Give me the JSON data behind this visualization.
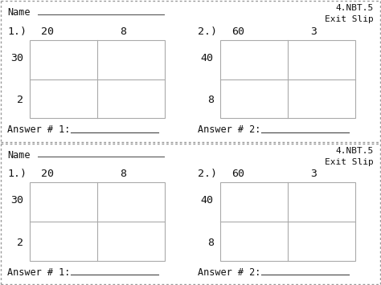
{
  "bg_color": "#ffffff",
  "border_color": "#444444",
  "dot_color": "#999999",
  "text_color": "#111111",
  "grid_color": "#aaaaaa",
  "font_size_name": 8.5,
  "font_size_num": 9.5,
  "font_size_tag": 8,
  "font_size_answer": 8.5,
  "sections": [
    {
      "tag": "4.NBT.5\nExit Slip",
      "problems": [
        {
          "label": "1.)",
          "col_labels": [
            "20",
            "8"
          ],
          "row_labels": [
            "30",
            "2"
          ],
          "answer_label": "Answer # 1:"
        },
        {
          "label": "2.)",
          "col_labels": [
            "60",
            "3"
          ],
          "row_labels": [
            "40",
            "8"
          ],
          "answer_label": "Answer # 2:"
        }
      ]
    },
    {
      "tag": "4.NBT.5\nExit Slip",
      "problems": [
        {
          "label": "1.)",
          "col_labels": [
            "20",
            "8"
          ],
          "row_labels": [
            "30",
            "2"
          ],
          "answer_label": "Answer # 1:"
        },
        {
          "label": "2.)",
          "col_labels": [
            "60",
            "3"
          ],
          "row_labels": [
            "40",
            "8"
          ],
          "answer_label": "Answer # 2:"
        }
      ]
    }
  ]
}
